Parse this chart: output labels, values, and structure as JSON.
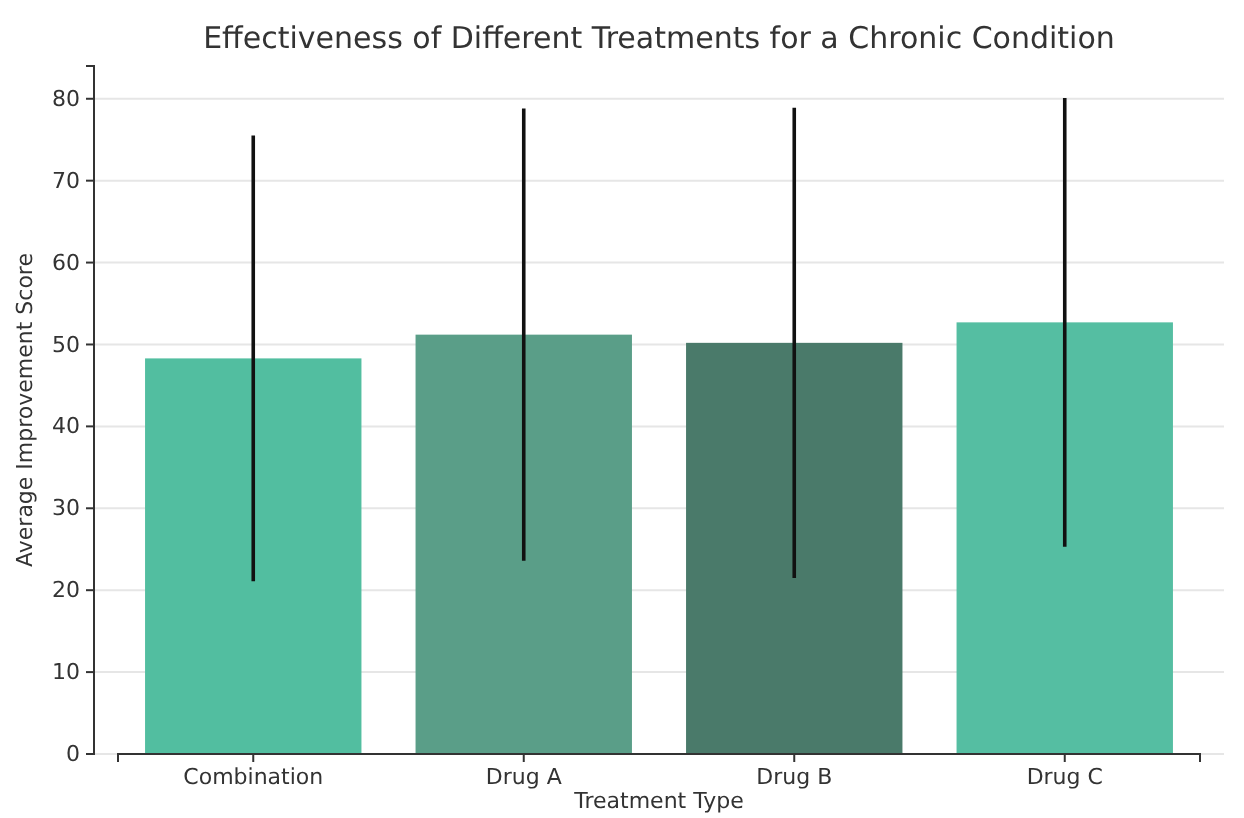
{
  "chart_data": {
    "type": "bar",
    "title": "Effectiveness of Different Treatments for a Chronic Condition",
    "xlabel": "Treatment Type",
    "ylabel": "Average Improvement Score",
    "categories": [
      "Combination",
      "Drug A",
      "Drug B",
      "Drug C"
    ],
    "values": [
      48.3,
      51.2,
      50.2,
      52.7
    ],
    "errors": [
      27.2,
      27.6,
      28.7,
      27.4
    ],
    "colors": [
      "#52bea0",
      "#5a9e88",
      "#4a7a6a",
      "#55bea2"
    ],
    "ylim": [
      0,
      84
    ],
    "yticks": [
      0,
      10,
      20,
      30,
      40,
      50,
      60,
      70,
      80
    ],
    "grid": "y"
  }
}
